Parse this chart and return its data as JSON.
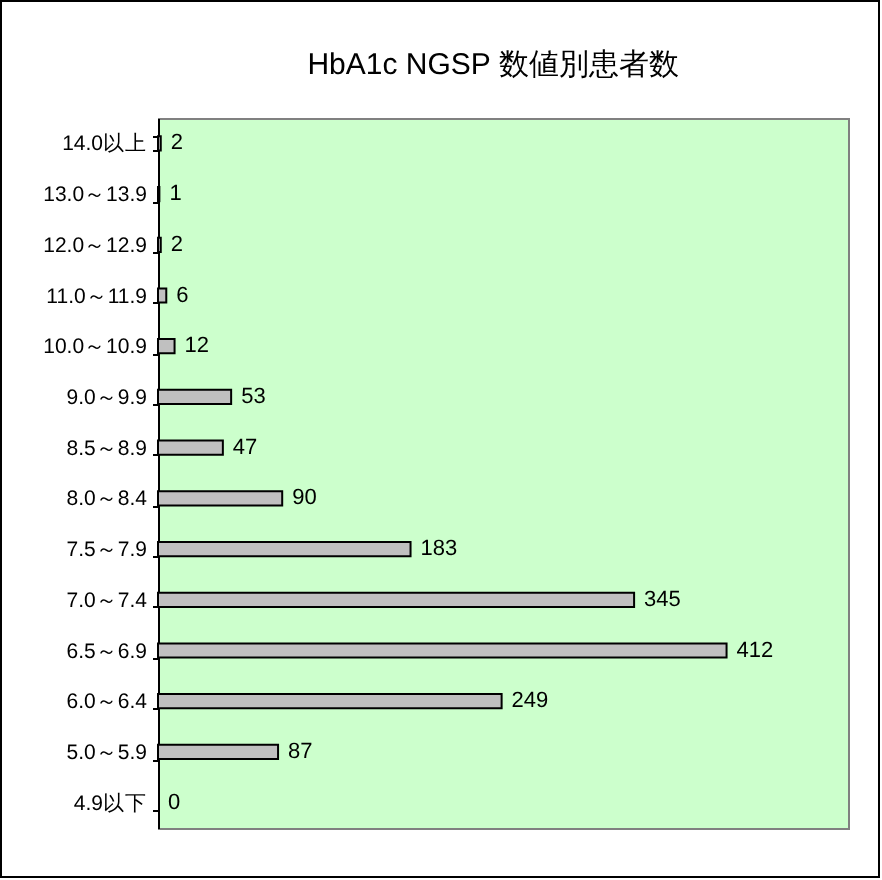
{
  "chart_data": {
    "type": "bar",
    "orientation": "horizontal",
    "title": "HbA1c NGSP 数値別患者数",
    "categories": [
      "14.0以上",
      "13.0～13.9",
      "12.0～12.9",
      "11.0～11.9",
      "10.0～10.9",
      "9.0～9.9",
      "8.5～8.9",
      "8.0～8.4",
      "7.5～7.9",
      "7.0～7.4",
      "6.5～6.9",
      "6.0～6.4",
      "5.0～5.9",
      "4.9以下"
    ],
    "values": [
      2,
      1,
      2,
      6,
      12,
      53,
      47,
      90,
      183,
      345,
      412,
      249,
      87,
      0
    ],
    "color": "#c0c0c0",
    "xlim": [
      0,
      500
    ],
    "data_labels": true,
    "tick_labels": "y"
  }
}
